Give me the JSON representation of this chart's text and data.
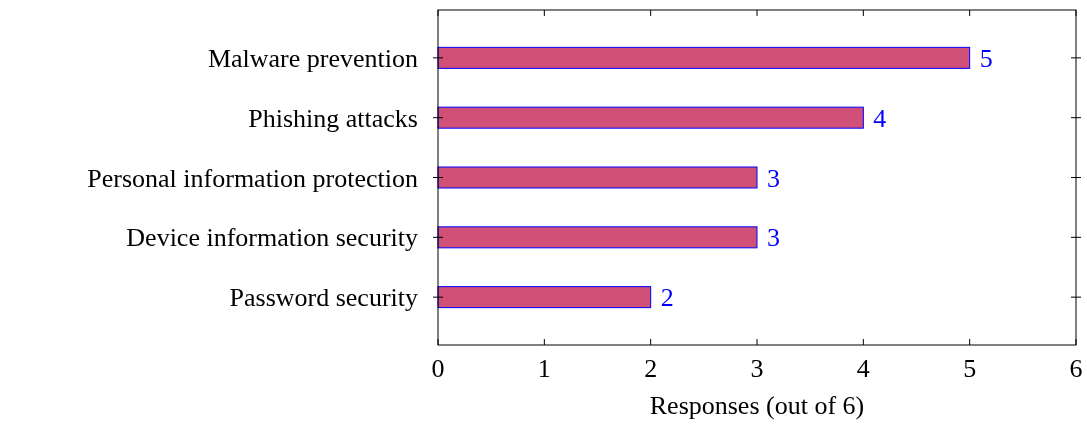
{
  "chart_data": {
    "type": "bar",
    "orientation": "horizontal",
    "categories": [
      "Malware prevention",
      "Phishing attacks",
      "Personal information protection",
      "Device information security",
      "Password security"
    ],
    "values": [
      5,
      4,
      3,
      3,
      2
    ],
    "color": "#d05078",
    "xlabel": "Responses (out of 6)",
    "xlim": [
      0,
      6
    ],
    "xticks": [
      0,
      1,
      2,
      3,
      4,
      5,
      6
    ],
    "data_labels": true
  }
}
